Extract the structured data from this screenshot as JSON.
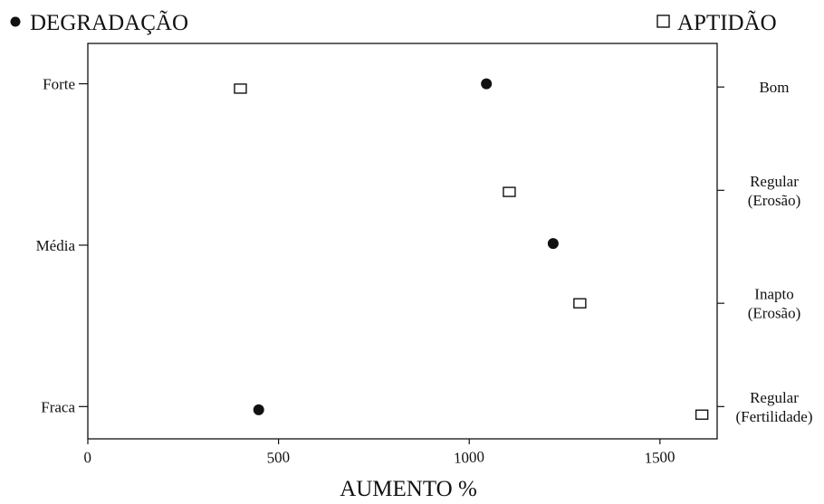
{
  "chart_data": {
    "type": "scatter",
    "xlabel": "AUMENTO %",
    "xlim": [
      0,
      1650
    ],
    "x_ticks": [
      0,
      500,
      1000,
      1500
    ],
    "left_axis": {
      "categories": [
        "Forte",
        "Média",
        "Fraca"
      ],
      "levels": [
        3,
        2,
        1
      ]
    },
    "right_axis": {
      "labels": [
        [
          "Bom"
        ],
        [
          "Regular",
          "(Erosão)"
        ],
        [
          "Inapto",
          "(Erosão)"
        ],
        [
          "Regular",
          "(Fertilidade)"
        ]
      ],
      "levels": [
        2.98,
        2.34,
        1.64,
        1.0
      ]
    },
    "ylim": [
      0.8,
      3.25
    ],
    "grid": false,
    "legend_position": "top",
    "series": [
      {
        "name": "DEGRADAÇÃO",
        "marker": "filled-circle",
        "color": "#111111",
        "points": [
          {
            "x": 1045,
            "y": 3.0
          },
          {
            "x": 1220,
            "y": 2.01
          },
          {
            "x": 448,
            "y": 0.98
          }
        ]
      },
      {
        "name": "APTIDÃO",
        "marker": "open-square",
        "color": "#111111",
        "points": [
          {
            "x": 400,
            "y": 2.97
          },
          {
            "x": 1105,
            "y": 2.33
          },
          {
            "x": 1290,
            "y": 1.64
          },
          {
            "x": 1610,
            "y": 0.95
          }
        ]
      }
    ]
  }
}
